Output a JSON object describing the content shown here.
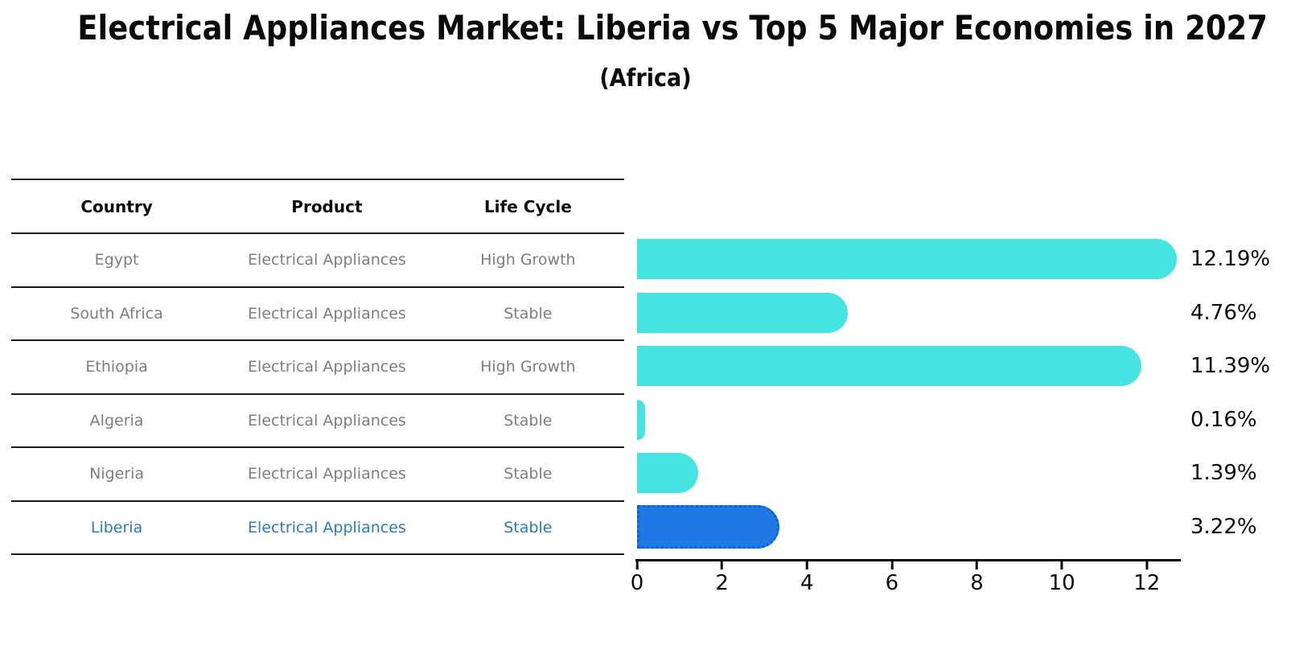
{
  "title": "Electrical Appliances Market: Liberia vs Top 5 Major Economies in 2027",
  "subtitle": "(Africa)",
  "table": {
    "headers": [
      "Country",
      "Product",
      "Life Cycle"
    ],
    "rows": [
      {
        "country": "Egypt",
        "product": "Electrical Appliances",
        "life_cycle": "High Growth",
        "highlighted": false
      },
      {
        "country": "South Africa",
        "product": "Electrical Appliances",
        "life_cycle": "Stable",
        "highlighted": false
      },
      {
        "country": "Ethiopia",
        "product": "Electrical Appliances",
        "life_cycle": "High Growth",
        "highlighted": false
      },
      {
        "country": "Algeria",
        "product": "Electrical Appliances",
        "life_cycle": "Stable",
        "highlighted": false
      },
      {
        "country": "Nigeria",
        "product": "Electrical Appliances",
        "life_cycle": "Stable",
        "highlighted": false
      },
      {
        "country": "Liberia",
        "product": "Electrical Appliances",
        "life_cycle": "Stable",
        "highlighted": true
      }
    ]
  },
  "chart_data": {
    "type": "bar",
    "orientation": "horizontal",
    "categories": [
      "Egypt",
      "South Africa",
      "Ethiopia",
      "Algeria",
      "Nigeria",
      "Liberia"
    ],
    "values": [
      12.19,
      4.76,
      11.39,
      0.16,
      1.39,
      3.22
    ],
    "value_labels": [
      "12.19%",
      "4.76%",
      "11.39%",
      "0.16%",
      "1.39%",
      "3.22%"
    ],
    "x_ticks": [
      "0",
      "2",
      "4",
      "6",
      "8",
      "10",
      "12"
    ],
    "xlim": [
      0,
      12.8
    ],
    "grid": false,
    "legend": "none",
    "highlight_index": 5
  },
  "colors": {
    "bar": "#45E4E0",
    "highlight_bar": "#1F79E6",
    "highlight_bar_border": "#1560C8",
    "muted_text": "#7E7E7E",
    "highlight_text": "#2B7CBD",
    "line": "#1A1A1A",
    "text": "#0A0A0A"
  }
}
